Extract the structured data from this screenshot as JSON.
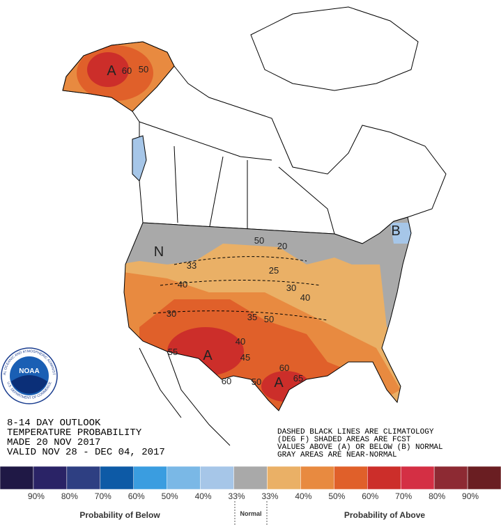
{
  "outlook": {
    "lines": [
      "8-14 DAY OUTLOOK",
      "TEMPERATURE PROBABILITY",
      "MADE  20 NOV 2017",
      "VALID  NOV 28 - DEC 04, 2017"
    ]
  },
  "notes": [
    "DASHED BLACK LINES ARE CLIMATOLOGY",
    "(DEG F) SHADED AREAS ARE FCST",
    "VALUES ABOVE (A) OR BELOW (B) NORMAL",
    "GRAY AREAS ARE NEAR-NORMAL"
  ],
  "logo": {
    "name": "NOAA",
    "ring_top": "NATIONAL OCEANIC AND ATMOSPHERIC ADMINISTRATION",
    "ring_bottom": "U.S. DEPARTMENT OF COMMERCE"
  },
  "map": {
    "labels": [
      "A",
      "60",
      "50",
      "50",
      "N",
      "33",
      "40",
      "30",
      "25",
      "20",
      "30",
      "40",
      "35",
      "50",
      "55",
      "40",
      "A",
      "45",
      "60",
      "60",
      "A",
      "65",
      "50",
      "B"
    ]
  },
  "legend": {
    "colors": [
      "#1f1845",
      "#2a2366",
      "#2e3f82",
      "#0d5aa6",
      "#3a9de0",
      "#7ab8e6",
      "#a6c6e8",
      "#a9a9a9",
      "#eab066",
      "#e88a40",
      "#e0602a",
      "#cc2e2a",
      "#d42f44",
      "#8d2a33",
      "#6a1e22"
    ],
    "labels": [
      "90%",
      "80%",
      "70%",
      "60%",
      "50%",
      "40%",
      "33%",
      "33%",
      "40%",
      "50%",
      "60%",
      "70%",
      "80%",
      "90%"
    ],
    "below": "Probability of Below",
    "normal": "Normal",
    "above": "Probability of Above"
  }
}
